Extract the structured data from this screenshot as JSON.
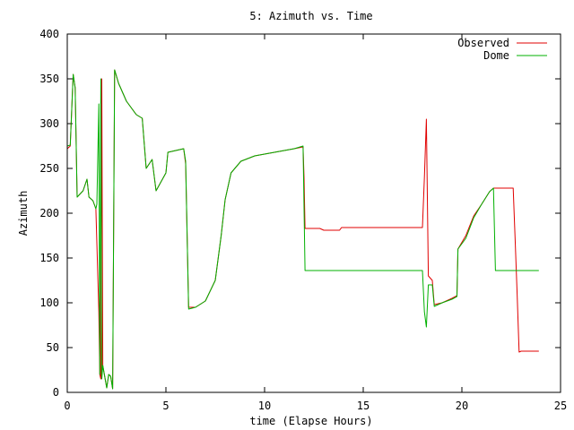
{
  "chart_data": {
    "type": "line",
    "title": "5: Azimuth vs. Time",
    "xlabel": "time (Elapse Hours)",
    "ylabel": "Azimuth",
    "xlim": [
      0,
      25
    ],
    "ylim": [
      0,
      400
    ],
    "xticks": [
      0,
      5,
      10,
      15,
      20,
      25
    ],
    "yticks": [
      0,
      50,
      100,
      150,
      200,
      250,
      300,
      350,
      400
    ],
    "grid": false,
    "legend_position": "top-right",
    "series": [
      {
        "name": "Observed",
        "color": "#e00000",
        "points": [
          [
            0,
            272
          ],
          [
            0.15,
            275
          ],
          [
            0.3,
            355
          ],
          [
            0.4,
            340
          ],
          [
            0.5,
            218
          ],
          [
            0.8,
            225
          ],
          [
            1.0,
            238
          ],
          [
            1.1,
            218
          ],
          [
            1.3,
            214
          ],
          [
            1.45,
            205
          ],
          [
            1.6,
            90
          ],
          [
            1.65,
            20
          ],
          [
            1.7,
            15
          ],
          [
            1.75,
            350
          ],
          [
            1.8,
            30
          ],
          [
            2.0,
            5
          ],
          [
            2.1,
            20
          ],
          [
            2.2,
            18
          ],
          [
            2.3,
            4
          ],
          [
            2.4,
            360
          ],
          [
            2.6,
            345
          ],
          [
            3.0,
            325
          ],
          [
            3.5,
            310
          ],
          [
            3.8,
            306
          ],
          [
            4.0,
            250
          ],
          [
            4.3,
            260
          ],
          [
            4.5,
            225
          ],
          [
            4.7,
            233
          ],
          [
            5.0,
            245
          ],
          [
            5.1,
            268
          ],
          [
            5.5,
            270
          ],
          [
            5.9,
            272
          ],
          [
            6.0,
            255
          ],
          [
            6.15,
            95
          ],
          [
            6.5,
            95
          ],
          [
            7.0,
            102
          ],
          [
            7.5,
            125
          ],
          [
            7.8,
            175
          ],
          [
            8.0,
            215
          ],
          [
            8.3,
            245
          ],
          [
            8.8,
            258
          ],
          [
            9.5,
            264
          ],
          [
            10.5,
            268
          ],
          [
            11.5,
            272
          ],
          [
            11.95,
            274
          ],
          [
            12.0,
            240
          ],
          [
            12.05,
            183
          ],
          [
            12.8,
            183
          ],
          [
            13.0,
            181
          ],
          [
            13.8,
            181
          ],
          [
            13.9,
            184
          ],
          [
            18.0,
            184
          ],
          [
            18.1,
            240
          ],
          [
            18.2,
            305
          ],
          [
            18.3,
            130
          ],
          [
            18.5,
            125
          ],
          [
            18.6,
            98
          ],
          [
            19.0,
            100
          ],
          [
            19.5,
            105
          ],
          [
            19.75,
            108
          ],
          [
            19.8,
            160
          ],
          [
            20.2,
            175
          ],
          [
            20.6,
            197
          ],
          [
            21.0,
            210
          ],
          [
            21.4,
            224
          ],
          [
            21.6,
            228
          ],
          [
            22.6,
            228
          ],
          [
            22.7,
            170
          ],
          [
            22.8,
            110
          ],
          [
            22.9,
            45
          ],
          [
            23.0,
            46
          ],
          [
            23.9,
            46
          ]
        ]
      },
      {
        "name": "Dome",
        "color": "#00b000",
        "points": [
          [
            0,
            275
          ],
          [
            0.15,
            276
          ],
          [
            0.3,
            355
          ],
          [
            0.4,
            340
          ],
          [
            0.5,
            218
          ],
          [
            0.8,
            225
          ],
          [
            1.0,
            238
          ],
          [
            1.1,
            218
          ],
          [
            1.3,
            214
          ],
          [
            1.45,
            205
          ],
          [
            1.5,
            210
          ],
          [
            1.6,
            322
          ],
          [
            1.65,
            20
          ],
          [
            1.7,
            350
          ],
          [
            1.75,
            15
          ],
          [
            1.8,
            30
          ],
          [
            2.0,
            5
          ],
          [
            2.1,
            20
          ],
          [
            2.2,
            18
          ],
          [
            2.3,
            4
          ],
          [
            2.4,
            360
          ],
          [
            2.6,
            345
          ],
          [
            3.0,
            325
          ],
          [
            3.5,
            310
          ],
          [
            3.8,
            306
          ],
          [
            4.0,
            250
          ],
          [
            4.3,
            260
          ],
          [
            4.5,
            225
          ],
          [
            4.7,
            233
          ],
          [
            5.0,
            245
          ],
          [
            5.1,
            268
          ],
          [
            5.5,
            270
          ],
          [
            5.9,
            272
          ],
          [
            6.0,
            258
          ],
          [
            6.15,
            93
          ],
          [
            6.5,
            95
          ],
          [
            7.0,
            102
          ],
          [
            7.5,
            125
          ],
          [
            7.8,
            175
          ],
          [
            8.0,
            215
          ],
          [
            8.3,
            245
          ],
          [
            8.8,
            258
          ],
          [
            9.5,
            264
          ],
          [
            10.5,
            268
          ],
          [
            11.5,
            272
          ],
          [
            11.95,
            275
          ],
          [
            12.05,
            136
          ],
          [
            18.0,
            136
          ],
          [
            18.1,
            90
          ],
          [
            18.2,
            73
          ],
          [
            18.3,
            120
          ],
          [
            18.5,
            120
          ],
          [
            18.6,
            96
          ],
          [
            19.0,
            100
          ],
          [
            19.5,
            104
          ],
          [
            19.75,
            107
          ],
          [
            19.8,
            160
          ],
          [
            20.2,
            172
          ],
          [
            20.6,
            195
          ],
          [
            21.0,
            210
          ],
          [
            21.4,
            224
          ],
          [
            21.6,
            228
          ],
          [
            21.7,
            136
          ],
          [
            23.9,
            136
          ]
        ]
      }
    ]
  }
}
